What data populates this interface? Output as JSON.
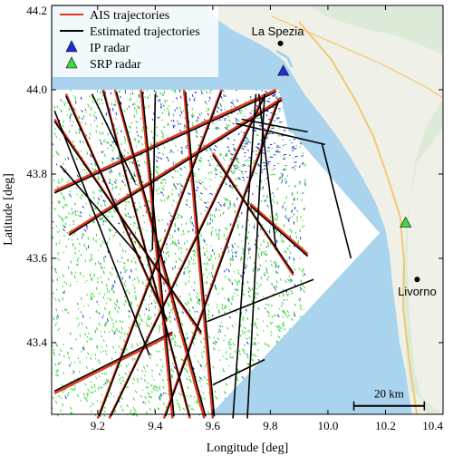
{
  "chart_data": {
    "type": "scatter",
    "xlabel": "Longitude [deg]",
    "ylabel": "Latitude [deg]",
    "xlim": [
      9.04,
      10.4
    ],
    "ylim": [
      43.23,
      44.2
    ],
    "xticks": [
      9.2,
      9.4,
      9.6,
      9.8,
      10.0,
      10.2,
      10.4
    ],
    "xtick_labels": [
      "9.2",
      "9.4",
      "9.6",
      "9.8",
      "10.0",
      "10.2",
      "10.4"
    ],
    "yticks": [
      43.4,
      43.6,
      43.8,
      44.0,
      44.2
    ],
    "ytick_labels": [
      "43.4",
      "43.6",
      "43.8",
      "44.0",
      "44.2"
    ],
    "grid": false,
    "legend_position": "top-left",
    "legend": [
      {
        "label": "AIS trajectories",
        "marker": "line",
        "color": "#e8341c"
      },
      {
        "label": "Estimated trajectories",
        "marker": "line",
        "color": "#000000"
      },
      {
        "label": "IP radar",
        "marker": "triangle",
        "color": "#1f2fd6"
      },
      {
        "label": "SRP radar",
        "marker": "triangle",
        "color": "#3ddc3d"
      }
    ],
    "coverage_polygon": [
      [
        9.04,
        44.0
      ],
      [
        9.83,
        44.0
      ],
      [
        9.86,
        43.91
      ],
      [
        10.18,
        43.66
      ],
      [
        9.58,
        43.22
      ],
      [
        9.04,
        43.22
      ]
    ],
    "radars": [
      {
        "name": "IP radar",
        "lon": 9.845,
        "lat": 44.045,
        "color": "#1f2fd6"
      },
      {
        "name": "SRP radar",
        "lon": 10.27,
        "lat": 43.685,
        "color": "#3ddc3d"
      }
    ],
    "cities": [
      {
        "name": "La Spezia",
        "lon": 9.835,
        "lat": 44.11
      },
      {
        "name": "Livorno",
        "lon": 10.31,
        "lat": 43.55
      }
    ],
    "scale_bar": {
      "label": "20 km",
      "lon_start": 10.09,
      "lon_end": 10.335,
      "lat": 43.25
    },
    "ais_trajectories": [
      [
        [
          9.05,
          43.76
        ],
        [
          9.82,
          44.0
        ]
      ],
      [
        [
          9.1,
          43.66
        ],
        [
          9.84,
          43.98
        ]
      ],
      [
        [
          9.22,
          44.0
        ],
        [
          9.52,
          43.22
        ]
      ],
      [
        [
          9.26,
          44.0
        ],
        [
          9.57,
          43.22
        ]
      ],
      [
        [
          9.35,
          44.0
        ],
        [
          9.46,
          43.22
        ]
      ],
      [
        [
          9.5,
          44.0
        ],
        [
          9.6,
          43.22
        ]
      ],
      [
        [
          9.78,
          43.99
        ],
        [
          9.24,
          43.22
        ]
      ],
      [
        [
          9.83,
          43.98
        ],
        [
          9.43,
          43.22
        ]
      ],
      [
        [
          9.63,
          44.0
        ],
        [
          9.2,
          43.22
        ]
      ],
      [
        [
          9.05,
          43.28
        ],
        [
          9.46,
          43.42
        ]
      ],
      [
        [
          9.05,
          43.93
        ],
        [
          9.56,
          43.42
        ]
      ],
      [
        [
          9.6,
          43.85
        ],
        [
          9.88,
          43.56
        ]
      ],
      [
        [
          9.73,
          43.73
        ],
        [
          9.93,
          43.61
        ]
      ],
      [
        [
          9.09,
          43.99
        ],
        [
          9.44,
          43.45
        ]
      ]
    ],
    "estimated_trajectories": [
      [
        [
          9.05,
          43.755
        ],
        [
          9.82,
          43.995
        ]
      ],
      [
        [
          9.1,
          43.655
        ],
        [
          9.84,
          43.975
        ]
      ],
      [
        [
          9.22,
          43.995
        ],
        [
          9.52,
          43.225
        ]
      ],
      [
        [
          9.265,
          43.995
        ],
        [
          9.575,
          43.225
        ]
      ],
      [
        [
          9.355,
          43.995
        ],
        [
          9.465,
          43.225
        ]
      ],
      [
        [
          9.505,
          43.995
        ],
        [
          9.605,
          43.225
        ]
      ],
      [
        [
          9.78,
          43.985
        ],
        [
          9.245,
          43.225
        ]
      ],
      [
        [
          9.83,
          43.975
        ],
        [
          9.435,
          43.225
        ]
      ],
      [
        [
          9.63,
          43.995
        ],
        [
          9.205,
          43.225
        ]
      ],
      [
        [
          9.05,
          43.285
        ],
        [
          9.46,
          43.425
        ]
      ],
      [
        [
          9.05,
          43.925
        ],
        [
          9.56,
          43.425
        ]
      ],
      [
        [
          9.6,
          43.845
        ],
        [
          9.88,
          43.565
        ]
      ],
      [
        [
          9.73,
          43.725
        ],
        [
          9.93,
          43.605
        ]
      ],
      [
        [
          9.09,
          43.985
        ],
        [
          9.44,
          43.455
        ]
      ],
      [
        [
          9.05,
          43.95
        ],
        [
          9.38,
          43.37
        ]
      ],
      [
        [
          9.07,
          43.82
        ],
        [
          9.35,
          43.6
        ]
      ],
      [
        [
          9.18,
          43.99
        ],
        [
          9.33,
          43.78
        ]
      ],
      [
        [
          9.4,
          43.99
        ],
        [
          9.39,
          43.62
        ]
      ],
      [
        [
          9.7,
          43.93
        ],
        [
          9.93,
          43.9
        ]
      ],
      [
        [
          9.68,
          43.92
        ],
        [
          9.99,
          43.87
        ]
      ],
      [
        [
          9.75,
          43.99
        ],
        [
          9.67,
          43.22
        ]
      ],
      [
        [
          9.78,
          43.99
        ],
        [
          9.72,
          43.22
        ]
      ],
      [
        [
          9.98,
          43.87
        ],
        [
          10.08,
          43.6
        ]
      ],
      [
        [
          9.76,
          43.99
        ],
        [
          9.82,
          43.62
        ]
      ],
      [
        [
          9.58,
          43.45
        ],
        [
          9.95,
          43.55
        ]
      ],
      [
        [
          9.6,
          43.3
        ],
        [
          9.78,
          43.36
        ]
      ]
    ]
  }
}
